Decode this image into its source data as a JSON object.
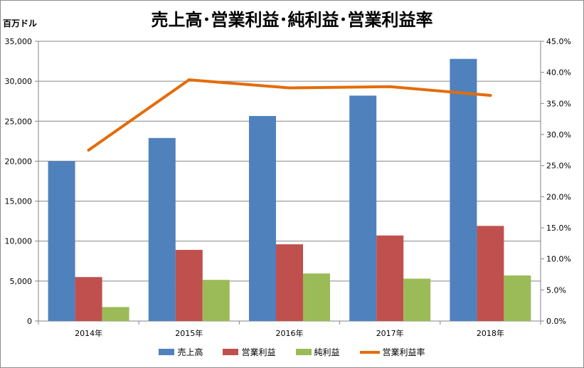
{
  "chart_data": {
    "type": "bar",
    "title": "売上高･営業利益･純利益･営業利益率",
    "unit_label": "百万ドル",
    "categories": [
      "2014年",
      "2015年",
      "2016年",
      "2017年",
      "2018年"
    ],
    "series": [
      {
        "name": "売上高",
        "type": "bar",
        "axis": "left",
        "color": "#4f81bd",
        "values": [
          20000,
          22900,
          25650,
          28200,
          32800
        ]
      },
      {
        "name": "営業利益",
        "type": "bar",
        "axis": "left",
        "color": "#c0504d",
        "values": [
          5500,
          8900,
          9600,
          10700,
          11900
        ]
      },
      {
        "name": "純利益",
        "type": "bar",
        "axis": "left",
        "color": "#9bbb59",
        "values": [
          1750,
          5150,
          5950,
          5300,
          5700
        ]
      },
      {
        "name": "営業利益率",
        "type": "line",
        "axis": "right",
        "color": "#e46c0a",
        "values": [
          27.5,
          38.8,
          37.5,
          37.7,
          36.3
        ]
      }
    ],
    "y_left": {
      "min": 0,
      "max": 35000,
      "ticks": [
        0,
        5000,
        10000,
        15000,
        20000,
        25000,
        30000,
        35000
      ],
      "tick_labels": [
        "0",
        "5,000",
        "10,000",
        "15,000",
        "20,000",
        "25,000",
        "30,000",
        "35,000"
      ]
    },
    "y_right": {
      "min": 0,
      "max": 45,
      "ticks": [
        0,
        5,
        10,
        15,
        20,
        25,
        30,
        35,
        40,
        45
      ],
      "tick_labels": [
        "0.0%",
        "5.0%",
        "10.0%",
        "15.0%",
        "20.0%",
        "25.0%",
        "30.0%",
        "35.0%",
        "40.0%",
        "45.0%"
      ]
    },
    "grid": true,
    "legend_position": "bottom"
  }
}
